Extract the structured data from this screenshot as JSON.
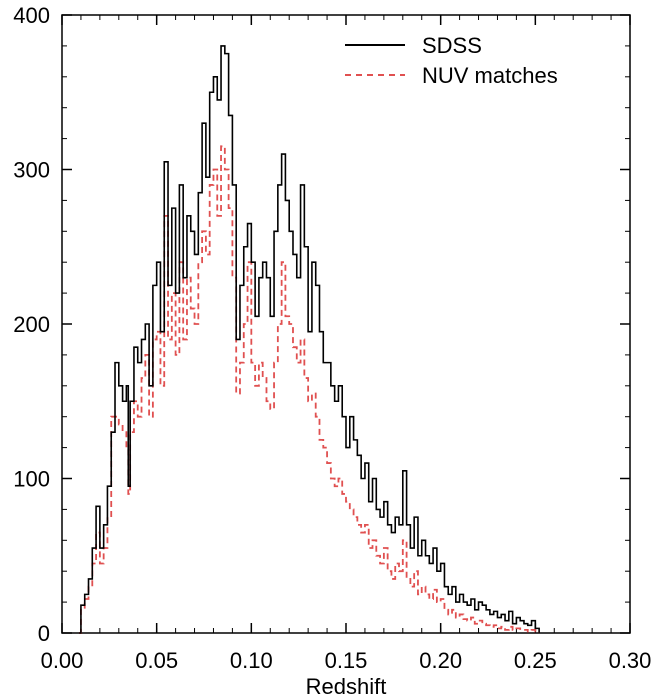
{
  "chart_data": {
    "type": "line",
    "title": "",
    "xlabel": "Redshift",
    "ylabel": "",
    "xlim": [
      0.0,
      0.3
    ],
    "ylim": [
      0,
      400
    ],
    "x_ticks": [
      "0.00",
      "0.05",
      "0.10",
      "0.15",
      "0.20",
      "0.25",
      "0.30"
    ],
    "y_ticks": [
      "0",
      "100",
      "200",
      "300",
      "400"
    ],
    "grid": false,
    "legend_position": "top-right",
    "series": [
      {
        "name": "SDSS",
        "color": "#000000",
        "style": "solid",
        "points": [
          [
            0.009,
            0
          ],
          [
            0.01,
            18
          ],
          [
            0.012,
            25
          ],
          [
            0.014,
            35
          ],
          [
            0.016,
            55
          ],
          [
            0.018,
            82
          ],
          [
            0.02,
            55
          ],
          [
            0.022,
            70
          ],
          [
            0.024,
            95
          ],
          [
            0.026,
            130
          ],
          [
            0.028,
            175
          ],
          [
            0.03,
            160
          ],
          [
            0.032,
            150
          ],
          [
            0.034,
            160
          ],
          [
            0.035,
            95
          ],
          [
            0.036,
            150
          ],
          [
            0.038,
            185
          ],
          [
            0.04,
            175
          ],
          [
            0.042,
            190
          ],
          [
            0.044,
            200
          ],
          [
            0.046,
            160
          ],
          [
            0.048,
            225
          ],
          [
            0.05,
            240
          ],
          [
            0.052,
            195
          ],
          [
            0.054,
            305
          ],
          [
            0.056,
            225
          ],
          [
            0.058,
            275
          ],
          [
            0.06,
            220
          ],
          [
            0.062,
            290
          ],
          [
            0.064,
            230
          ],
          [
            0.066,
            270
          ],
          [
            0.068,
            260
          ],
          [
            0.07,
            245
          ],
          [
            0.072,
            285
          ],
          [
            0.074,
            330
          ],
          [
            0.076,
            295
          ],
          [
            0.078,
            350
          ],
          [
            0.08,
            360
          ],
          [
            0.082,
            345
          ],
          [
            0.084,
            380
          ],
          [
            0.086,
            375
          ],
          [
            0.088,
            335
          ],
          [
            0.09,
            290
          ],
          [
            0.092,
            190
          ],
          [
            0.094,
            225
          ],
          [
            0.096,
            250
          ],
          [
            0.098,
            265
          ],
          [
            0.1,
            240
          ],
          [
            0.102,
            205
          ],
          [
            0.104,
            230
          ],
          [
            0.106,
            240
          ],
          [
            0.108,
            230
          ],
          [
            0.11,
            205
          ],
          [
            0.112,
            260
          ],
          [
            0.114,
            290
          ],
          [
            0.116,
            310
          ],
          [
            0.118,
            280
          ],
          [
            0.12,
            260
          ],
          [
            0.122,
            245
          ],
          [
            0.124,
            230
          ],
          [
            0.126,
            290
          ],
          [
            0.128,
            250
          ],
          [
            0.13,
            195
          ],
          [
            0.132,
            240
          ],
          [
            0.134,
            225
          ],
          [
            0.136,
            195
          ],
          [
            0.138,
            175
          ],
          [
            0.14,
            175
          ],
          [
            0.142,
            160
          ],
          [
            0.144,
            150
          ],
          [
            0.146,
            160
          ],
          [
            0.148,
            140
          ],
          [
            0.15,
            120
          ],
          [
            0.152,
            140
          ],
          [
            0.154,
            125
          ],
          [
            0.156,
            115
          ],
          [
            0.158,
            100
          ],
          [
            0.16,
            110
          ],
          [
            0.162,
            85
          ],
          [
            0.164,
            100
          ],
          [
            0.166,
            80
          ],
          [
            0.168,
            75
          ],
          [
            0.17,
            85
          ],
          [
            0.172,
            70
          ],
          [
            0.174,
            65
          ],
          [
            0.176,
            75
          ],
          [
            0.178,
            70
          ],
          [
            0.18,
            105
          ],
          [
            0.182,
            70
          ],
          [
            0.184,
            55
          ],
          [
            0.186,
            75
          ],
          [
            0.188,
            50
          ],
          [
            0.19,
            60
          ],
          [
            0.192,
            50
          ],
          [
            0.194,
            45
          ],
          [
            0.196,
            55
          ],
          [
            0.198,
            40
          ],
          [
            0.2,
            45
          ],
          [
            0.202,
            30
          ],
          [
            0.204,
            25
          ],
          [
            0.206,
            30
          ],
          [
            0.208,
            20
          ],
          [
            0.21,
            25
          ],
          [
            0.212,
            20
          ],
          [
            0.214,
            18
          ],
          [
            0.216,
            22
          ],
          [
            0.218,
            15
          ],
          [
            0.22,
            20
          ],
          [
            0.222,
            18
          ],
          [
            0.224,
            15
          ],
          [
            0.226,
            12
          ],
          [
            0.228,
            14
          ],
          [
            0.23,
            10
          ],
          [
            0.232,
            12
          ],
          [
            0.234,
            8
          ],
          [
            0.236,
            14
          ],
          [
            0.238,
            6
          ],
          [
            0.24,
            10
          ],
          [
            0.242,
            8
          ],
          [
            0.244,
            6
          ],
          [
            0.246,
            5
          ],
          [
            0.248,
            8
          ],
          [
            0.25,
            3
          ],
          [
            0.252,
            0
          ]
        ]
      },
      {
        "name": "NUV matches",
        "color": "#e05050",
        "style": "dashed",
        "points": [
          [
            0.009,
            0
          ],
          [
            0.01,
            15
          ],
          [
            0.012,
            22
          ],
          [
            0.014,
            30
          ],
          [
            0.016,
            45
          ],
          [
            0.018,
            65
          ],
          [
            0.02,
            45
          ],
          [
            0.022,
            55
          ],
          [
            0.024,
            75
          ],
          [
            0.026,
            140
          ],
          [
            0.028,
            140
          ],
          [
            0.03,
            135
          ],
          [
            0.032,
            130
          ],
          [
            0.034,
            120
          ],
          [
            0.035,
            90
          ],
          [
            0.036,
            130
          ],
          [
            0.038,
            150
          ],
          [
            0.04,
            140
          ],
          [
            0.042,
            165
          ],
          [
            0.044,
            180
          ],
          [
            0.046,
            140
          ],
          [
            0.048,
            190
          ],
          [
            0.05,
            195
          ],
          [
            0.052,
            160
          ],
          [
            0.054,
            270
          ],
          [
            0.056,
            190
          ],
          [
            0.058,
            220
          ],
          [
            0.06,
            180
          ],
          [
            0.062,
            240
          ],
          [
            0.064,
            190
          ],
          [
            0.066,
            230
          ],
          [
            0.068,
            210
          ],
          [
            0.07,
            200
          ],
          [
            0.072,
            240
          ],
          [
            0.074,
            260
          ],
          [
            0.076,
            245
          ],
          [
            0.078,
            290
          ],
          [
            0.08,
            300
          ],
          [
            0.082,
            270
          ],
          [
            0.084,
            315
          ],
          [
            0.086,
            300
          ],
          [
            0.088,
            275
          ],
          [
            0.09,
            230
          ],
          [
            0.092,
            155
          ],
          [
            0.094,
            175
          ],
          [
            0.096,
            200
          ],
          [
            0.098,
            240
          ],
          [
            0.1,
            175
          ],
          [
            0.102,
            160
          ],
          [
            0.104,
            175
          ],
          [
            0.106,
            165
          ],
          [
            0.108,
            150
          ],
          [
            0.11,
            145
          ],
          [
            0.112,
            175
          ],
          [
            0.114,
            200
          ],
          [
            0.116,
            240
          ],
          [
            0.118,
            205
          ],
          [
            0.12,
            200
          ],
          [
            0.122,
            185
          ],
          [
            0.124,
            175
          ],
          [
            0.126,
            190
          ],
          [
            0.128,
            165
          ],
          [
            0.13,
            150
          ],
          [
            0.132,
            155
          ],
          [
            0.134,
            140
          ],
          [
            0.136,
            125
          ],
          [
            0.138,
            120
          ],
          [
            0.14,
            110
          ],
          [
            0.142,
            100
          ],
          [
            0.144,
            95
          ],
          [
            0.146,
            100
          ],
          [
            0.148,
            90
          ],
          [
            0.15,
            85
          ],
          [
            0.152,
            80
          ],
          [
            0.154,
            75
          ],
          [
            0.156,
            70
          ],
          [
            0.158,
            65
          ],
          [
            0.16,
            70
          ],
          [
            0.162,
            55
          ],
          [
            0.164,
            60
          ],
          [
            0.166,
            50
          ],
          [
            0.168,
            45
          ],
          [
            0.17,
            55
          ],
          [
            0.172,
            40
          ],
          [
            0.174,
            35
          ],
          [
            0.176,
            45
          ],
          [
            0.178,
            40
          ],
          [
            0.18,
            60
          ],
          [
            0.182,
            35
          ],
          [
            0.184,
            30
          ],
          [
            0.186,
            40
          ],
          [
            0.188,
            25
          ],
          [
            0.19,
            30
          ],
          [
            0.192,
            25
          ],
          [
            0.194,
            22
          ],
          [
            0.196,
            28
          ],
          [
            0.198,
            20
          ],
          [
            0.2,
            22
          ],
          [
            0.202,
            15
          ],
          [
            0.204,
            12
          ],
          [
            0.206,
            15
          ],
          [
            0.208,
            10
          ],
          [
            0.21,
            12
          ],
          [
            0.212,
            9
          ],
          [
            0.214,
            8
          ],
          [
            0.216,
            10
          ],
          [
            0.218,
            6
          ],
          [
            0.22,
            8
          ],
          [
            0.222,
            6
          ],
          [
            0.224,
            5
          ],
          [
            0.226,
            4
          ],
          [
            0.228,
            5
          ],
          [
            0.23,
            3
          ],
          [
            0.232,
            4
          ],
          [
            0.234,
            2
          ],
          [
            0.236,
            4
          ],
          [
            0.238,
            2
          ],
          [
            0.24,
            3
          ],
          [
            0.242,
            2
          ],
          [
            0.244,
            2
          ],
          [
            0.246,
            1
          ],
          [
            0.248,
            2
          ],
          [
            0.25,
            1
          ],
          [
            0.252,
            0
          ]
        ]
      }
    ]
  }
}
